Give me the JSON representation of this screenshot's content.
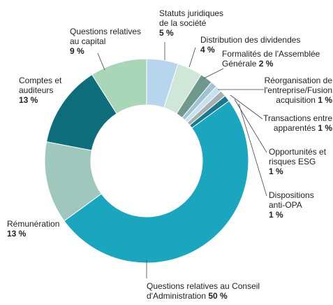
{
  "chart_data": {
    "type": "pie",
    "categories": [
      "Statuts juridiques de la société",
      "Distribution des dividendes",
      "Formalités de l'Assemblée Générale",
      "Réorganisation de l'entreprise/Fusion acquisition",
      "Transactions entre apparentés",
      "Opportunités et risques ESG",
      "Dispositions anti-OPA",
      "Questions relatives au Conseil d'Administration",
      "Rémunération",
      "Comptes et auditeurs",
      "Questions relatives au capital"
    ],
    "values": [
      5,
      4,
      2,
      1,
      1,
      1,
      1,
      50,
      13,
      13,
      9
    ],
    "value_labels": [
      "5 %",
      "4 %",
      "2 %",
      "1 %",
      "1 %",
      "1 %",
      "1 %",
      "50 %",
      "13 %",
      "13 %",
      "9 %"
    ],
    "colors": [
      "#b8d5ee",
      "#cfe7d9",
      "#6e998c",
      "#9ec3d3",
      "#c6e2ee",
      "#a7afaf",
      "#17798a",
      "#19a6be",
      "#a0c7bb",
      "#0e6d7b",
      "#a9d6b6"
    ],
    "donut": true
  }
}
